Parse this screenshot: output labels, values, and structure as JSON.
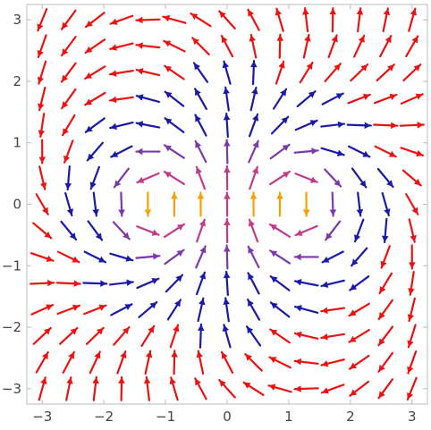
{
  "chart_data": {
    "type": "vector_field",
    "title": "",
    "xlabel": "",
    "ylabel": "",
    "xlim": [
      -3.25,
      3.25
    ],
    "ylim": [
      -3.25,
      3.25
    ],
    "x_ticks": [
      -3,
      -2,
      -1,
      0,
      1,
      2,
      3
    ],
    "y_ticks": [
      3,
      2,
      1,
      0,
      -1,
      -2,
      -3
    ],
    "x_tick_labels": [
      "−3",
      "−2",
      "−1",
      "0",
      "1",
      "2",
      "3"
    ],
    "y_tick_labels": [
      "3",
      "2",
      "1",
      "0",
      "−1",
      "−2",
      "−3"
    ],
    "grid": false,
    "legend": "none",
    "field": {
      "description": "direction field of the dipole-like system with singular points near (-1, 0) and (1, 0)",
      "grid_range": [
        -3,
        3
      ],
      "grid_count": 15,
      "singular_points": [
        [
          -1,
          0
        ],
        [
          1,
          0
        ]
      ],
      "color_scale": [
        "#1a1aa8",
        "#7a3aa8",
        "#c23a8a",
        "#f5a300",
        "#ee1111"
      ],
      "color_scale_note": "blue for medium speed, purple and orange near the singular points, red far away"
    }
  }
}
